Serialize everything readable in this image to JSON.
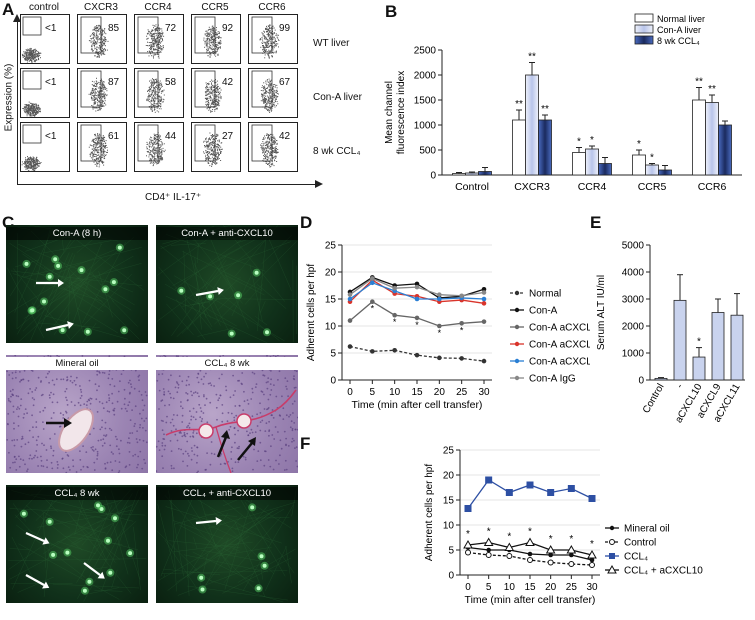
{
  "panels": {
    "A": "A",
    "B": "B",
    "C": "C",
    "D": "D",
    "E": "E",
    "F": "F"
  },
  "A": {
    "cols": [
      "control",
      "CXCR3",
      "CCR4",
      "CCR5",
      "CCR6"
    ],
    "rows": [
      {
        "label": "WT liver",
        "values": [
          "<1",
          "85",
          "72",
          "92",
          "99"
        ]
      },
      {
        "label": "Con-A liver",
        "values": [
          "<1",
          "87",
          "58",
          "42",
          "67"
        ]
      },
      {
        "label": "8 wk CCL₄",
        "values": [
          "<1",
          "61",
          "44",
          "27",
          "42"
        ]
      }
    ],
    "ylabel": "Expression (%)",
    "xlabel": "CD4⁺ IL-17⁺"
  },
  "C": {
    "images": [
      {
        "label": "Con-A (8 h)",
        "type": "fluor"
      },
      {
        "label": "Con-A + anti-CXCL10",
        "type": "fluor"
      },
      {
        "label": "Mineral oil",
        "type": "he"
      },
      {
        "label": "CCL₄ 8 wk",
        "type": "he"
      },
      {
        "label": "CCL₄ 8 wk",
        "type": "fluor"
      },
      {
        "label": "CCL₄ + anti-CXCL10",
        "type": "fluor"
      }
    ]
  },
  "chart_data": [
    {
      "panel": "B",
      "type": "bar",
      "ylabel": "Mean channel fluorescence index",
      "categories": [
        "Control",
        "CXCR3",
        "CCR4",
        "CCR5",
        "CCR6"
      ],
      "ylim": [
        0,
        2500
      ],
      "yticks": [
        "0",
        "500",
        "1000",
        "1500",
        "2000",
        "2500"
      ],
      "series": [
        {
          "name": "Normal liver",
          "color": "#ffffff",
          "values": [
            30,
            1100,
            450,
            400,
            1500
          ],
          "errors": [
            20,
            200,
            100,
            100,
            250
          ],
          "stars": [
            "",
            "**",
            "*",
            "*",
            "**"
          ]
        },
        {
          "name": "Con-A liver",
          "color": "#c9d3ee",
          "values": [
            40,
            2000,
            520,
            200,
            1450
          ],
          "errors": [
            20,
            250,
            60,
            30,
            150
          ],
          "stars": [
            "",
            "**",
            "*",
            "*",
            "**"
          ]
        },
        {
          "name": "8 wk CCL₄",
          "color": "#1f2f66",
          "values": [
            70,
            1100,
            230,
            100,
            1000
          ],
          "errors": [
            80,
            100,
            120,
            90,
            80
          ],
          "stars": [
            "",
            "**",
            "",
            "",
            ""
          ]
        }
      ]
    },
    {
      "panel": "D",
      "type": "line",
      "ylabel": "Adherent cells per hpf",
      "xlabel": "Time (min after cell transfer)",
      "x": [
        0,
        5,
        10,
        15,
        20,
        25,
        30
      ],
      "ylim": [
        0,
        25
      ],
      "yticks": [
        "0",
        "5",
        "10",
        "15",
        "20",
        "25"
      ],
      "series": [
        {
          "name": "Normal",
          "color": "#333333",
          "dash": true,
          "values": [
            6.2,
            5.3,
            5.5,
            4.6,
            4.1,
            4.0,
            3.5
          ]
        },
        {
          "name": "Con-A",
          "color": "#111111",
          "values": [
            16.3,
            19.0,
            17.5,
            17.8,
            15.2,
            15.5,
            16.8
          ]
        },
        {
          "name": "Con-A aCXCL10",
          "color": "#666666",
          "values": [
            11.0,
            14.5,
            12.0,
            11.5,
            10.0,
            10.5,
            10.8
          ]
        },
        {
          "name": "Con-A aCXCL9",
          "color": "#d9342b",
          "values": [
            14.5,
            18.5,
            16.0,
            15.5,
            14.5,
            14.8,
            14.2
          ]
        },
        {
          "name": "Con-A aCXCL11",
          "color": "#2a7fd4",
          "values": [
            15.0,
            18.0,
            16.5,
            15.0,
            15.0,
            15.2,
            15.0
          ]
        },
        {
          "name": "Con-A IgG",
          "color": "#888888",
          "values": [
            15.8,
            18.8,
            17.0,
            17.2,
            15.8,
            15.6,
            16.2
          ]
        }
      ]
    },
    {
      "panel": "E",
      "type": "bar",
      "ylabel": "Serum ALT IU/ml",
      "categories": [
        "Control",
        "-",
        "aCXCL10",
        "aCXCL9",
        "aCXCL11"
      ],
      "group_label": "Con-A",
      "ylim": [
        0,
        5000
      ],
      "yticks": [
        "0",
        "1000",
        "2000",
        "3000",
        "4000",
        "5000"
      ],
      "values": [
        60,
        2950,
        850,
        2500,
        2400
      ],
      "errors": [
        30,
        950,
        350,
        500,
        800
      ],
      "stars": [
        "",
        "",
        "*",
        "",
        ""
      ],
      "color": "#c9d3ee"
    },
    {
      "panel": "F",
      "type": "line",
      "ylabel": "Adherent cells per hpf",
      "xlabel": "Time (min after cell transfer)",
      "x": [
        0,
        5,
        10,
        15,
        20,
        25,
        30
      ],
      "ylim": [
        0,
        25
      ],
      "yticks": [
        "0",
        "5",
        "10",
        "15",
        "20",
        "25"
      ],
      "stars": [
        "*",
        "*",
        "*",
        "*",
        "*",
        "*",
        "*"
      ],
      "series": [
        {
          "name": "Mineral oil",
          "marker": "circle",
          "color": "#111111",
          "values": [
            5.5,
            5.0,
            5.0,
            4.2,
            4.0,
            4.0,
            3.0
          ]
        },
        {
          "name": "Control",
          "marker": "open-circle",
          "dash": true,
          "color": "#111111",
          "values": [
            4.5,
            4.0,
            3.8,
            3.0,
            2.5,
            2.2,
            2.0
          ]
        },
        {
          "name": "CCL₄",
          "marker": "square",
          "color": "#2d4fa3",
          "values": [
            13.3,
            19.0,
            16.5,
            18.0,
            16.5,
            17.3,
            15.3
          ]
        },
        {
          "name": "CCL₄ + aCXCL10",
          "marker": "triangle",
          "color": "#111111",
          "values": [
            6.0,
            6.5,
            5.5,
            6.5,
            5.0,
            5.0,
            4.0
          ]
        }
      ]
    }
  ]
}
